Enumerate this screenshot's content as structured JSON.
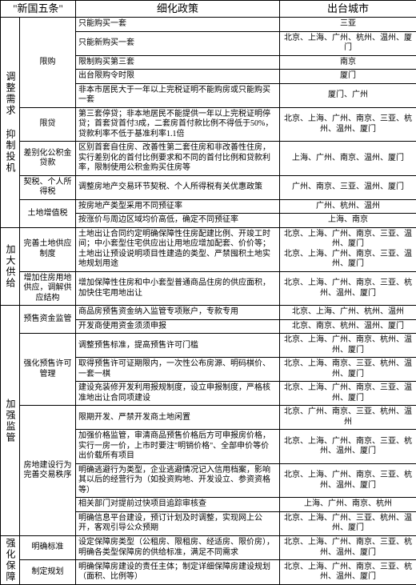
{
  "header": {
    "col1": "\"新国五条\"",
    "col2": "细化政策",
    "col3": "出台城市"
  },
  "groups": [
    {
      "label": "调整需求 抑制投机"
    },
    {
      "label": "加大供给"
    },
    {
      "label": "加强监管"
    },
    {
      "label": "强化保障"
    }
  ],
  "rows": [
    {
      "sub": "限购",
      "policy": "只能购买一套",
      "city": "三亚"
    },
    {
      "policy": "只能新购买一套",
      "city": "北京、上海、广州、杭州、温州、厦门"
    },
    {
      "policy": "限制购买第三套",
      "city": "南京"
    },
    {
      "policy": "出台限购令时限",
      "city": "厦门"
    },
    {
      "policy": "非本市居民大于一年以上完税证明不能购房或只能购买一套",
      "city": "厦门、广州"
    },
    {
      "sub": "限贷",
      "policy": "第三套停贷；非本地居民不能提供一年以上完税证明停贷；首套贷首付3成，二套房首付款比例不得低于50%，贷款利率不低于基准利率1.1倍",
      "city": "北京、上海、广州、南京、三亚、杭州、温州、厦门"
    },
    {
      "sub": "差别化公积金贷款",
      "policy": "区别首套自住房、改善性第二套住房和非改善性住房，实行差别化的首付比例要求和不同的首付比例和贷款利率，限制使用公积金购买住房等",
      "city": "上海、广州、南京、温州、厦门"
    },
    {
      "sub": "契税、个人所得税",
      "policy": "调整房地产交易环节契税、个人所得税有关优惠政策",
      "city": "广州、南京、三亚、温州、厦门"
    },
    {
      "sub": "土地增值税",
      "policy": "按房地产类型采用不同预征率",
      "city": "广州、杭州、温州"
    },
    {
      "policy": "按涨价与周边区域均价高低，确定不同预征率",
      "city": "上海、南京"
    },
    {
      "sub": "完善土地供应制度",
      "policy": "土地出让合同约定明确保障性住房配建比例、开竣工时间；中小套型住宅供应出让用地应增加配套、价价等；土地出让预设说明项目性建造的类型、严禁囤积土地实地规划用途",
      "city": "北京、上海、广州、南京、三亚、温州、厦门\n北京、上海、广州、南京、三亚、温州、厦门"
    },
    {
      "sub": "增加住房用地供应，调解供应结构",
      "policy": "增加保障性住房和中小套型普通商品住房的供应面积，加快住宅用地出让",
      "city": "北京、上海、广州、南京、三亚、杭州、温州、厦门"
    },
    {
      "sub": "预售资金监管",
      "policy": "商品房预售资金纳入监管专项账户，专款专用",
      "city": "北京、上海、广州、杭州、温州"
    },
    {
      "policy": "开发商使用资金须须申报",
      "city": "北京、南京、杭州、温州、厦门"
    },
    {
      "sub": "强化预售许可管理",
      "policy": "调整预售标准，提高预售许可门槛",
      "city": "北京、上海、广州、南京、杭州、温州、厦门"
    },
    {
      "policy": "取得预售许可证期限内，一次性公布房源、明码棋价、一套一棋",
      "city": "北京、上海、南京、三亚、杭州、温州、厦门"
    },
    {
      "policy": "建设充装修开发利用报规制度，设立申报制度，严格核准地出让合同项建设",
      "city": "北京、上海、广州、南京、三亚、温州、厦门"
    },
    {
      "sub": "房地建设行为 完善交易秩序",
      "policy": "限期开发、严禁开发商土地闲置",
      "city": "北京、广州、南京、三亚、杭州、温州"
    },
    {
      "policy": "加强价格监管，审清商品预售价格后方可申报房价格，实行一房一价，上市时要注\"明销价格\"、全部申价等价出价载所有项目",
      "city": "北京、上海、广州、南京、三亚、杭州、温州、厦门"
    },
    {
      "policy": "明确逃避行为类型，企业逃避情况记入信用档案，影响其以后的经营行为（如投资购地、开发设立、参资资格等）",
      "city": "北京、上海、广州、南京、三亚、杭州、温州、厦门"
    },
    {
      "policy": "相关部门对提前过快项目追踪审核查",
      "city": "上海、广州、南京、杭州"
    },
    {
      "policy": "明确信息平台建设，预订计划及时调整，实现网上公开，客观引导公众预期",
      "city": "北京、上海、广州、三亚、杭州、温州、厦门"
    },
    {
      "sub": "明确标准",
      "policy": "设定保障房类型（公租房、限租房、经适房、限价房），明确各类型保障房的供给标准，满足不同需求",
      "city": "北京、上海、广州、南京、三亚、杭州、温州、厦门"
    },
    {
      "sub": "制定规划",
      "policy": "明确保障房建设的责任主体；制定详细保障房建设规划（面积、比例等）",
      "city": "北京、上海、广州、南京、三亚、杭州、温州、厦门"
    }
  ]
}
